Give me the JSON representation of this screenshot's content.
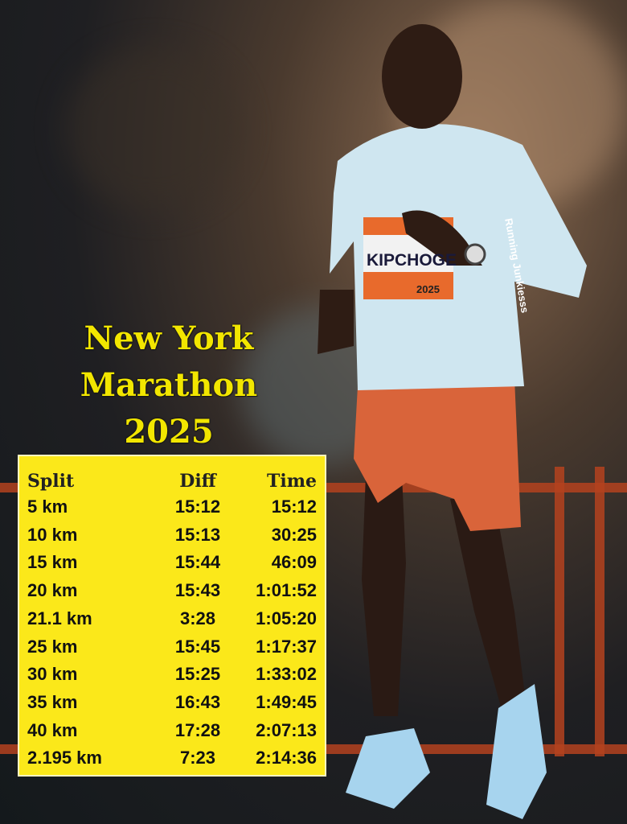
{
  "title": {
    "line1": "New York",
    "line2": "Marathon",
    "line3": "2025"
  },
  "bib": {
    "name": "KIPCHOGE",
    "year": "2025"
  },
  "watermark": "Running Junkiesss",
  "splits": {
    "headers": [
      "Split",
      "Diff",
      "Time"
    ],
    "rows": [
      [
        "5 km",
        "15:12",
        "15:12"
      ],
      [
        "10 km",
        "15:13",
        "30:25"
      ],
      [
        "15 km",
        "15:44",
        "46:09"
      ],
      [
        "20 km",
        "15:43",
        "1:01:52"
      ],
      [
        "21.1 km",
        "3:28",
        "1:05:20"
      ],
      [
        "25 km",
        "15:45",
        "1:17:37"
      ],
      [
        "30 km",
        "15:25",
        "1:33:02"
      ],
      [
        "35 km",
        "16:43",
        "1:49:45"
      ],
      [
        "40 km",
        "17:28",
        "2:07:13"
      ],
      [
        "2.195 km",
        "7:23",
        "2:14:36"
      ]
    ]
  },
  "colors": {
    "table_bg": "#fbe81a",
    "title": "#f2e600",
    "shirt": "#cfe6f0",
    "shorts": "#d9643a",
    "fence": "#b4421e"
  }
}
